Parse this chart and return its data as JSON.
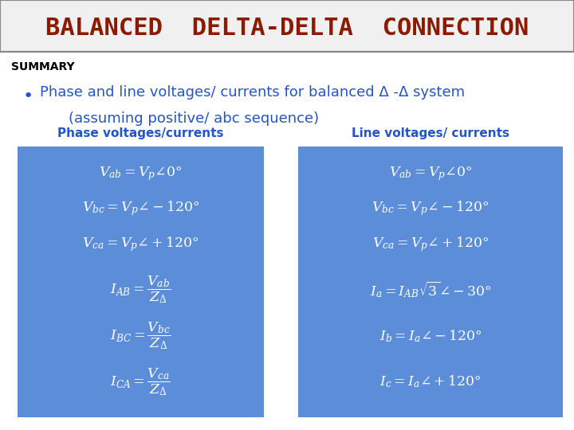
{
  "title": "BALANCED  DELTA-DELTA  CONNECTION",
  "title_color": "#8B1A00",
  "summary_label": "SUMMARY",
  "bullet_text_line1": "Phase and line voltages/ currents for balanced Δ -Δ system",
  "bullet_text_line2": "(assuming positive/ abc sequence)",
  "bullet_color": "#2255CC",
  "box_bg": "#5B8DD9",
  "left_header": "Phase voltages/currents",
  "right_header": "Line voltages/ currents",
  "header_color": "#2255CC",
  "formula_color": "#FFFFFF",
  "bg_color": "#FFFFFF",
  "border_color": "#888888"
}
